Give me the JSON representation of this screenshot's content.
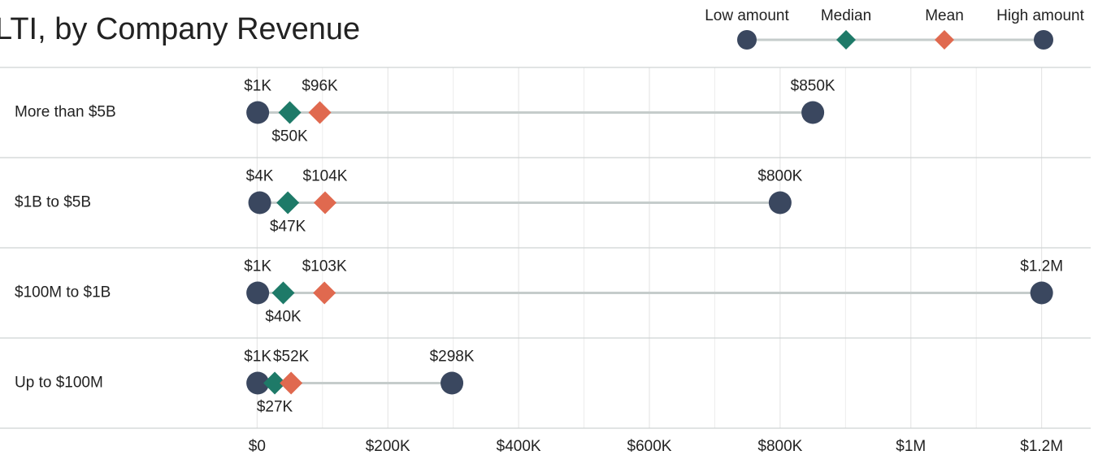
{
  "chart_data": {
    "type": "dot",
    "title": "LTI, by Company Revenue",
    "categories": [
      "More than $5B",
      "$1B to $5B",
      "$100M to $1B",
      "Up to $100M"
    ],
    "series": [
      {
        "name": "Low amount",
        "color": "#3a475f",
        "marker": "circle",
        "values": [
          1000,
          4000,
          1000,
          1000
        ],
        "value_labels": [
          "$1K",
          "$4K",
          "$1K",
          "$1K"
        ]
      },
      {
        "name": "Median",
        "color": "#1e7a68",
        "marker": "diamond",
        "values": [
          50000,
          47000,
          40000,
          27000
        ],
        "value_labels": [
          "$50K",
          "$47K",
          "$40K",
          "$27K"
        ]
      },
      {
        "name": "Mean",
        "color": "#e0694f",
        "marker": "diamond",
        "values": [
          96000,
          104000,
          103000,
          52000
        ],
        "value_labels": [
          "$96K",
          "$104K",
          "$103K",
          "$52K"
        ]
      },
      {
        "name": "High amount",
        "color": "#3a475f",
        "marker": "circle",
        "values": [
          850000,
          800000,
          1200000,
          298000
        ],
        "value_labels": [
          "$850K",
          "$800K",
          "$1.2M",
          "$298K"
        ]
      }
    ],
    "xlim": [
      -75000,
      1275000
    ],
    "xticks": [
      {
        "value": 0,
        "label": "$0"
      },
      {
        "value": 200000,
        "label": "$200K"
      },
      {
        "value": 400000,
        "label": "$400K"
      },
      {
        "value": 600000,
        "label": "$600K"
      },
      {
        "value": 800000,
        "label": "$800K"
      },
      {
        "value": 1000000,
        "label": "$1M"
      },
      {
        "value": 1200000,
        "label": "$1.2M"
      }
    ],
    "x_minor_ticks": [
      100000,
      300000,
      500000,
      700000,
      900000,
      1100000
    ],
    "grid": true,
    "legend": "top-right"
  }
}
